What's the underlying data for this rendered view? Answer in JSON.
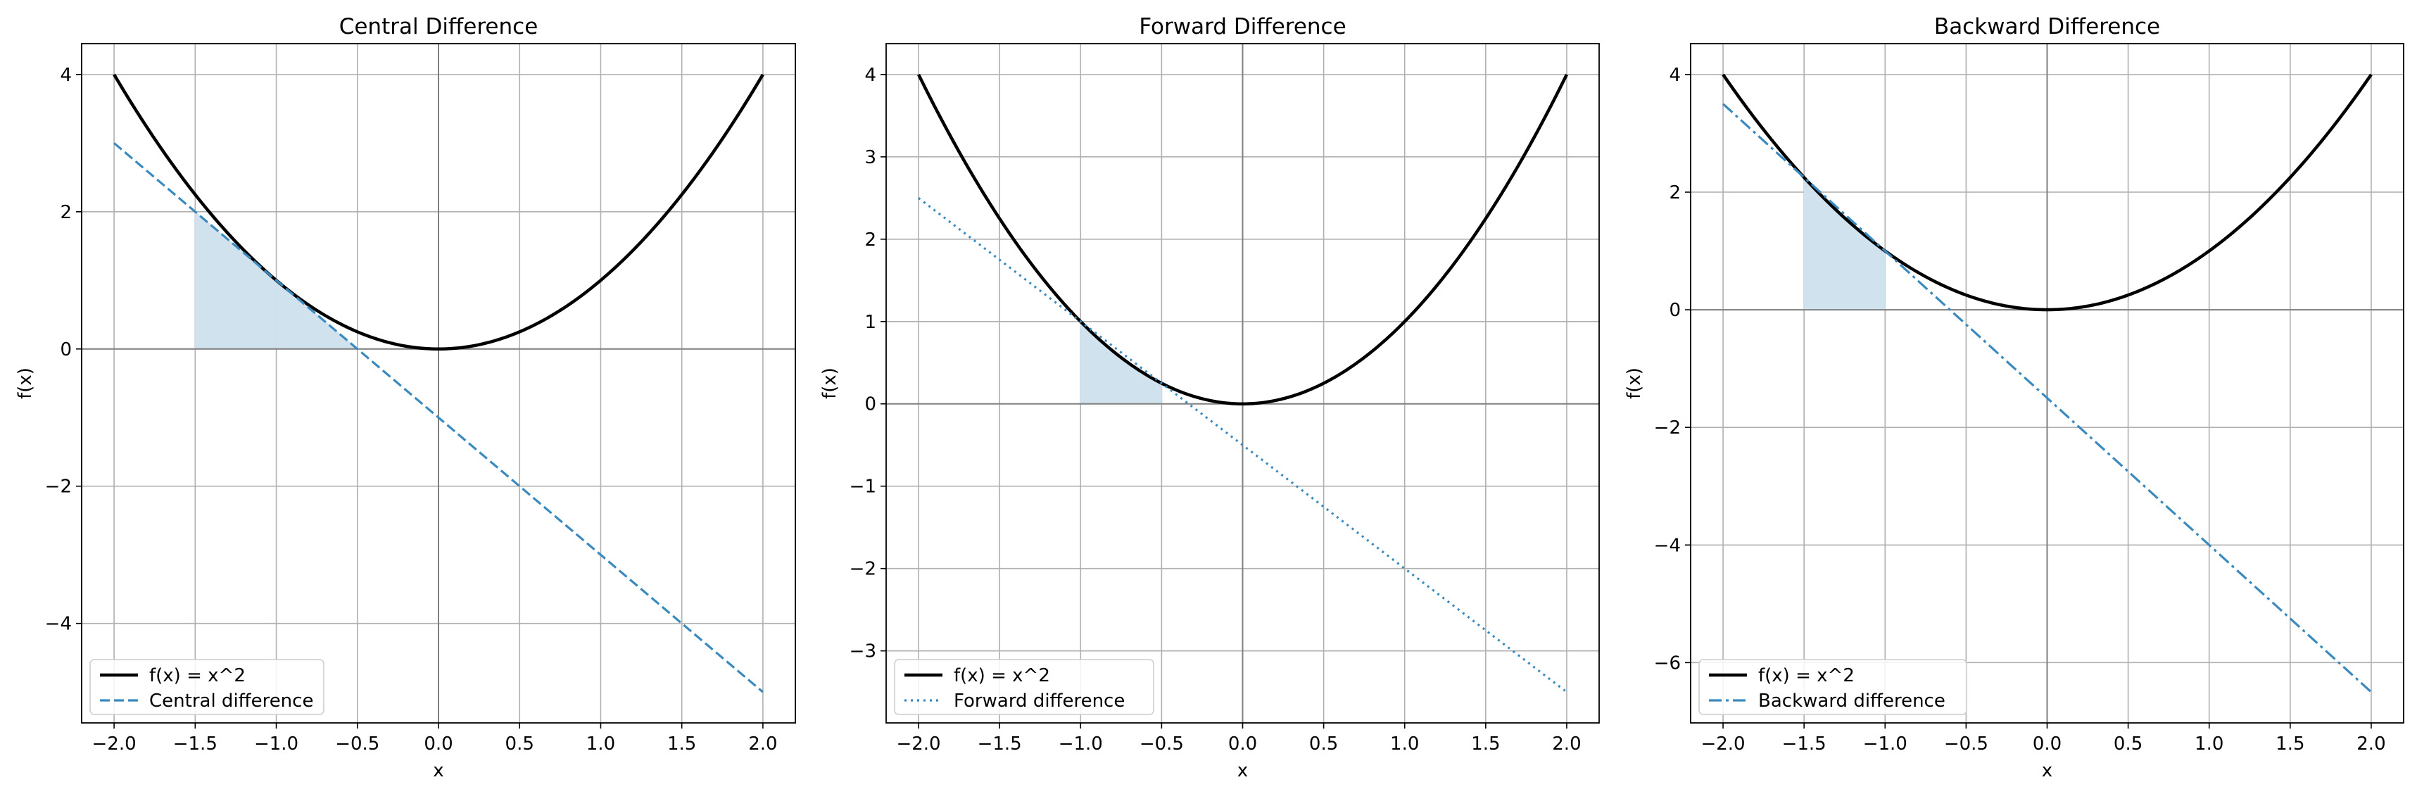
{
  "chart_data": [
    {
      "type": "line",
      "title": "Central Difference",
      "xlabel": "x",
      "ylabel": "f(x)",
      "xlim": [
        -2.2,
        2.2
      ],
      "ylim": [
        -5.45,
        4.45
      ],
      "xticks": [
        -2.0,
        -1.5,
        -1.0,
        -0.5,
        0.0,
        0.5,
        1.0,
        1.5,
        2.0
      ],
      "xtick_labels": [
        "−2.0",
        "−1.5",
        "−1.0",
        "−0.5",
        "0.0",
        "0.5",
        "1.0",
        "1.5",
        "2.0"
      ],
      "yticks": [
        -4,
        -2,
        0,
        2,
        4
      ],
      "ytick_labels": [
        "−4",
        "−2",
        "0",
        "2",
        "4"
      ],
      "grid": true,
      "legend_position": "lower-left",
      "shaded_region": {
        "x_from": -1.5,
        "x_to": -0.5,
        "description": "between tangent line and y=0"
      },
      "series": [
        {
          "name": "f(x) = x^2",
          "style": "solid",
          "color": "#000000",
          "function": "x^2",
          "x_range": [
            -2,
            2
          ]
        },
        {
          "name": "Central difference",
          "style": "dashed",
          "color": "#3a8ac0",
          "x": [
            -2.0,
            2.0
          ],
          "y": [
            3.0,
            -5.0
          ]
        }
      ]
    },
    {
      "type": "line",
      "title": "Forward Difference",
      "xlabel": "x",
      "ylabel": "f(x)",
      "xlim": [
        -2.2,
        2.2
      ],
      "ylim": [
        -3.875,
        4.375
      ],
      "xticks": [
        -2.0,
        -1.5,
        -1.0,
        -0.5,
        0.0,
        0.5,
        1.0,
        1.5,
        2.0
      ],
      "xtick_labels": [
        "−2.0",
        "−1.5",
        "−1.0",
        "−0.5",
        "0.0",
        "0.5",
        "1.0",
        "1.5",
        "2.0"
      ],
      "yticks": [
        -3,
        -2,
        -1,
        0,
        1,
        2,
        3,
        4
      ],
      "ytick_labels": [
        "−3",
        "−2",
        "−1",
        "0",
        "1",
        "2",
        "3",
        "4"
      ],
      "grid": true,
      "legend_position": "lower-left",
      "shaded_region": {
        "x_from": -1.0,
        "x_to": -0.5,
        "description": "under f(x) above y=0"
      },
      "series": [
        {
          "name": "f(x) = x^2",
          "style": "solid",
          "color": "#000000",
          "function": "x^2",
          "x_range": [
            -2,
            2
          ]
        },
        {
          "name": "Forward difference",
          "style": "dotted",
          "color": "#3a8ac0",
          "x": [
            -2.0,
            2.0
          ],
          "y": [
            2.5,
            -3.5
          ]
        }
      ]
    },
    {
      "type": "line",
      "title": "Backward Difference",
      "xlabel": "x",
      "ylabel": "f(x)",
      "xlim": [
        -2.2,
        2.2
      ],
      "ylim": [
        -7.025,
        4.525
      ],
      "xticks": [
        -2.0,
        -1.5,
        -1.0,
        -0.5,
        0.0,
        0.5,
        1.0,
        1.5,
        2.0
      ],
      "xtick_labels": [
        "−2.0",
        "−1.5",
        "−1.0",
        "−0.5",
        "0.0",
        "0.5",
        "1.0",
        "1.5",
        "2.0"
      ],
      "yticks": [
        -6,
        -4,
        -2,
        0,
        2,
        4
      ],
      "ytick_labels": [
        "−6",
        "−4",
        "−2",
        "0",
        "2",
        "4"
      ],
      "grid": true,
      "legend_position": "lower-left",
      "shaded_region": {
        "x_from": -1.5,
        "x_to": -1.0,
        "description": "under f(x) above y=0"
      },
      "series": [
        {
          "name": "f(x) = x^2",
          "style": "solid",
          "color": "#000000",
          "function": "x^2",
          "x_range": [
            -2,
            2
          ]
        },
        {
          "name": "Backward difference",
          "style": "dashdot",
          "color": "#3a8ac0",
          "x": [
            -2.0,
            2.0
          ],
          "y": [
            3.5,
            -6.5
          ]
        }
      ]
    }
  ],
  "colors": {
    "curve": "#000000",
    "approx_line": "#3a8ac0",
    "shade": "#cfe1ef",
    "grid": "#b0b0b0",
    "axis_zero": "#808080"
  }
}
